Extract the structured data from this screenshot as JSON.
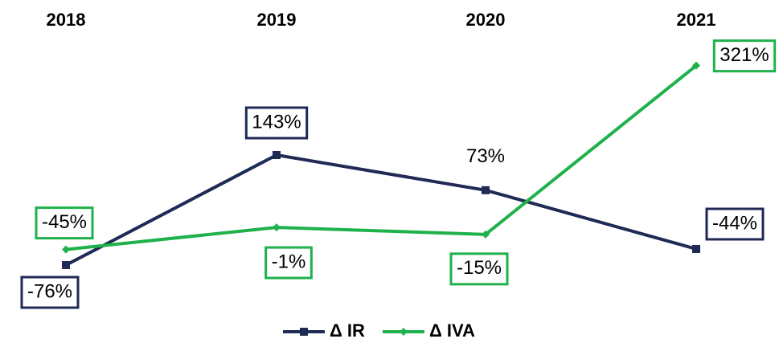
{
  "chart_data": {
    "type": "line",
    "categories": [
      "2018",
      "2019",
      "2020",
      "2021"
    ],
    "series": [
      {
        "name": "Δ IR",
        "color": "#1f2a55",
        "marker": "square",
        "values": [
          -76,
          143,
          73,
          -44
        ],
        "value_labels": [
          "-76%",
          "143%",
          "73%",
          "-44%"
        ]
      },
      {
        "name": "Δ IVA",
        "color": "#1fb14b",
        "marker": "diamond",
        "values": [
          -45,
          -1,
          -15,
          321
        ],
        "value_labels": [
          "-45%",
          "-1%",
          "-15%",
          "321%"
        ]
      }
    ],
    "ylim": [
      -150,
      350
    ],
    "legend": "bottom"
  }
}
